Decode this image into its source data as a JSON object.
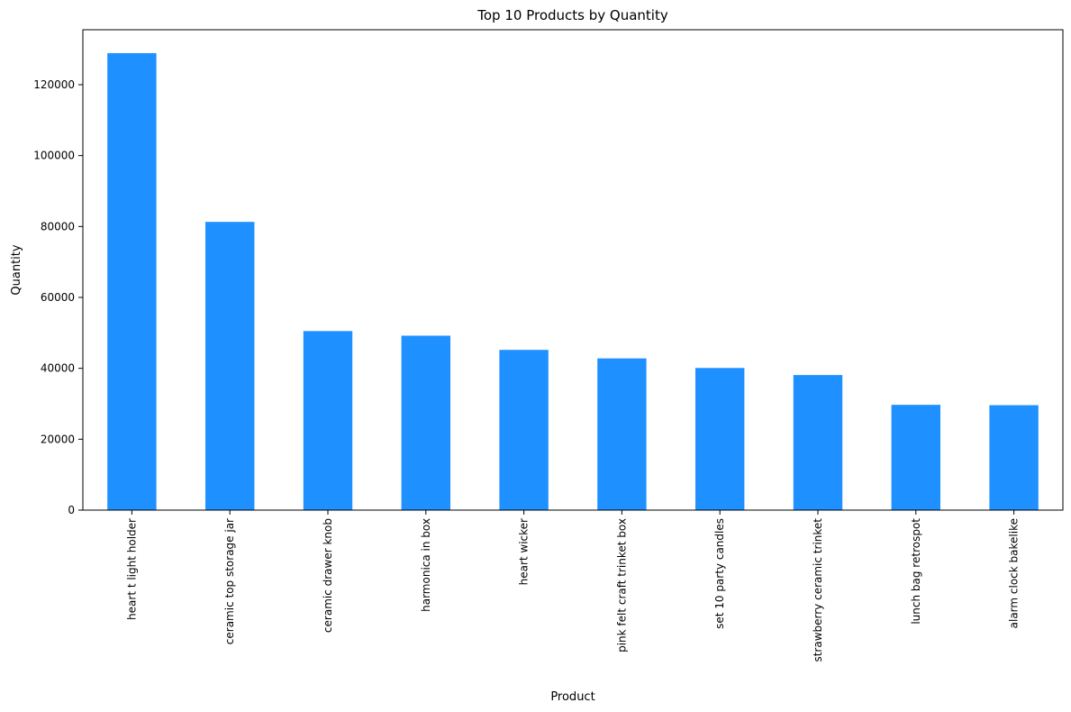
{
  "chart_data": {
    "type": "bar",
    "title": "Top 10 Products by Quantity",
    "xlabel": "Product",
    "ylabel": "Quantity",
    "categories": [
      "heart t light holder",
      "ceramic top storage jar",
      "ceramic drawer knob",
      "harmonica in box",
      "heart wicker",
      "pink felt craft trinket box",
      "set 10 party candles",
      "strawberry ceramic trinket",
      "lunch bag retrospot",
      "alarm clock bakelike"
    ],
    "values": [
      128900,
      81300,
      50500,
      49200,
      45200,
      42800,
      40100,
      38100,
      29700,
      29600
    ],
    "ylim": [
      0,
      135500
    ],
    "yticks": [
      0,
      20000,
      40000,
      60000,
      80000,
      100000,
      120000
    ],
    "bar_color": "#1e90ff",
    "grid": false,
    "legend": false
  }
}
